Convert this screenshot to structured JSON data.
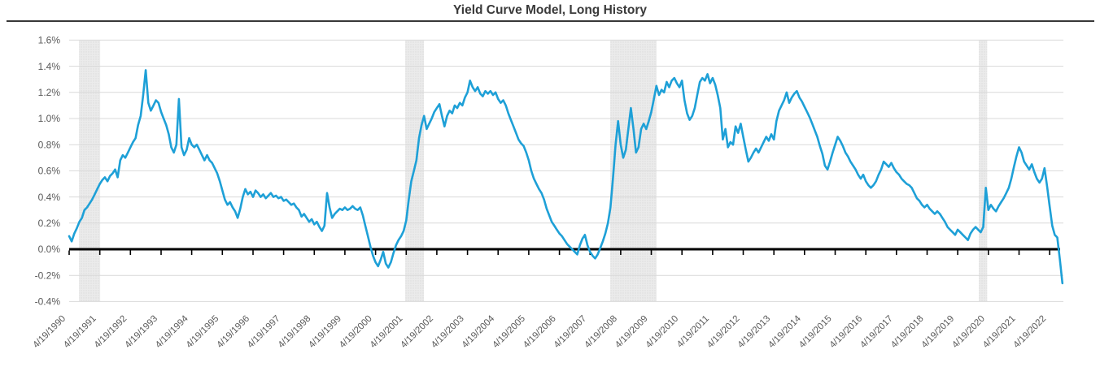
{
  "title": "Yield Curve Model, Long History",
  "colors": {
    "line": "#1EA0D7",
    "grid": "#D9D9D9",
    "band": "#E6E6E6",
    "zero_axis": "#000000",
    "tick_label": "#595959",
    "title_text": "#3A3A3A",
    "title_rule": "#383838",
    "background": "#FFFFFF"
  },
  "chart_data": {
    "type": "line",
    "title": "Yield Curve Model, Long History",
    "xlabel": "",
    "ylabel": "",
    "ylim": [
      -0.4,
      1.6
    ],
    "grid": "horizontal",
    "legend": "none",
    "y_ticks": [
      1.6,
      1.4,
      1.2,
      1.0,
      0.8,
      0.6,
      0.4,
      0.2,
      0.0,
      -0.2,
      -0.4
    ],
    "y_tick_labels": [
      "1.6%",
      "1.4%",
      "1.2%",
      "1.0%",
      "0.8%",
      "0.6%",
      "0.4%",
      "0.2%",
      "0.0%",
      "-0.2%",
      "-0.4%"
    ],
    "x_tick_labels": [
      "4/19/1990",
      "4/19/1991",
      "4/19/1992",
      "4/19/1993",
      "4/19/1994",
      "4/19/1995",
      "4/19/1996",
      "4/19/1997",
      "4/19/1998",
      "4/19/1999",
      "4/19/2000",
      "4/19/2001",
      "4/19/2002",
      "4/19/2003",
      "4/19/2004",
      "4/19/2005",
      "4/19/2006",
      "4/19/2007",
      "4/19/2008",
      "4/19/2009",
      "4/19/2010",
      "4/19/2011",
      "4/19/2012",
      "4/19/2013",
      "4/19/2014",
      "4/19/2015",
      "4/19/2016",
      "4/19/2017",
      "4/19/2018",
      "4/19/2019",
      "4/19/2020",
      "4/19/2021",
      "4/19/2022"
    ],
    "shaded_bands_t": [
      [
        0.32,
        1.01
      ],
      [
        10.97,
        11.58
      ],
      [
        17.66,
        19.17
      ],
      [
        29.69,
        29.96
      ]
    ],
    "shaded_bands_note": "gray vertical recession-style shading; t = years after 4/19/1990",
    "series": [
      {
        "name": "Yield Curve Model",
        "start": "1990-04",
        "frequency": "monthly",
        "unit": "%",
        "values": [
          0.1,
          0.06,
          0.12,
          0.16,
          0.21,
          0.24,
          0.3,
          0.32,
          0.35,
          0.38,
          0.42,
          0.46,
          0.5,
          0.53,
          0.55,
          0.52,
          0.56,
          0.58,
          0.61,
          0.55,
          0.68,
          0.72,
          0.7,
          0.74,
          0.78,
          0.82,
          0.85,
          0.95,
          1.02,
          1.18,
          1.37,
          1.12,
          1.06,
          1.1,
          1.14,
          1.12,
          1.05,
          1.0,
          0.95,
          0.88,
          0.78,
          0.74,
          0.8,
          1.15,
          0.78,
          0.72,
          0.76,
          0.85,
          0.8,
          0.78,
          0.8,
          0.76,
          0.72,
          0.68,
          0.72,
          0.68,
          0.66,
          0.62,
          0.58,
          0.52,
          0.45,
          0.38,
          0.34,
          0.36,
          0.32,
          0.29,
          0.24,
          0.31,
          0.4,
          0.46,
          0.42,
          0.44,
          0.4,
          0.45,
          0.43,
          0.4,
          0.42,
          0.39,
          0.41,
          0.43,
          0.4,
          0.41,
          0.39,
          0.4,
          0.37,
          0.38,
          0.36,
          0.34,
          0.35,
          0.32,
          0.3,
          0.25,
          0.27,
          0.24,
          0.21,
          0.23,
          0.19,
          0.21,
          0.17,
          0.14,
          0.18,
          0.43,
          0.32,
          0.24,
          0.27,
          0.29,
          0.31,
          0.3,
          0.32,
          0.3,
          0.31,
          0.33,
          0.31,
          0.3,
          0.32,
          0.26,
          0.18,
          0.1,
          0.02,
          -0.05,
          -0.1,
          -0.13,
          -0.08,
          -0.02,
          -0.11,
          -0.14,
          -0.1,
          -0.03,
          0.03,
          0.07,
          0.1,
          0.14,
          0.22,
          0.38,
          0.52,
          0.6,
          0.68,
          0.85,
          0.95,
          1.02,
          0.92,
          0.96,
          1.0,
          1.05,
          1.08,
          1.11,
          1.02,
          0.94,
          1.02,
          1.06,
          1.04,
          1.1,
          1.08,
          1.12,
          1.1,
          1.16,
          1.2,
          1.29,
          1.24,
          1.21,
          1.24,
          1.19,
          1.17,
          1.21,
          1.19,
          1.21,
          1.18,
          1.2,
          1.15,
          1.12,
          1.14,
          1.1,
          1.04,
          0.99,
          0.94,
          0.89,
          0.84,
          0.81,
          0.79,
          0.74,
          0.68,
          0.6,
          0.54,
          0.5,
          0.46,
          0.43,
          0.38,
          0.31,
          0.26,
          0.21,
          0.18,
          0.15,
          0.12,
          0.1,
          0.07,
          0.04,
          0.02,
          0.0,
          -0.02,
          -0.04,
          0.03,
          0.08,
          0.11,
          0.03,
          -0.02,
          -0.05,
          -0.07,
          -0.04,
          0.01,
          0.06,
          0.12,
          0.2,
          0.32,
          0.55,
          0.8,
          0.98,
          0.8,
          0.7,
          0.76,
          0.92,
          1.08,
          0.92,
          0.74,
          0.78,
          0.92,
          0.96,
          0.92,
          0.98,
          1.05,
          1.15,
          1.25,
          1.18,
          1.22,
          1.2,
          1.28,
          1.24,
          1.29,
          1.31,
          1.27,
          1.24,
          1.29,
          1.14,
          1.04,
          0.99,
          1.02,
          1.08,
          1.18,
          1.28,
          1.31,
          1.29,
          1.34,
          1.27,
          1.31,
          1.26,
          1.18,
          1.08,
          0.84,
          0.92,
          0.78,
          0.82,
          0.8,
          0.94,
          0.89,
          0.96,
          0.86,
          0.76,
          0.67,
          0.7,
          0.74,
          0.77,
          0.74,
          0.78,
          0.82,
          0.86,
          0.83,
          0.88,
          0.84,
          0.98,
          1.06,
          1.1,
          1.14,
          1.2,
          1.12,
          1.16,
          1.19,
          1.21,
          1.16,
          1.13,
          1.09,
          1.05,
          1.01,
          0.96,
          0.91,
          0.86,
          0.79,
          0.73,
          0.64,
          0.61,
          0.67,
          0.74,
          0.8,
          0.86,
          0.83,
          0.79,
          0.74,
          0.71,
          0.67,
          0.64,
          0.61,
          0.57,
          0.54,
          0.57,
          0.52,
          0.49,
          0.47,
          0.49,
          0.52,
          0.57,
          0.61,
          0.67,
          0.65,
          0.63,
          0.66,
          0.62,
          0.59,
          0.57,
          0.54,
          0.52,
          0.5,
          0.49,
          0.47,
          0.43,
          0.39,
          0.37,
          0.34,
          0.32,
          0.34,
          0.31,
          0.29,
          0.27,
          0.29,
          0.27,
          0.24,
          0.21,
          0.17,
          0.15,
          0.13,
          0.11,
          0.15,
          0.13,
          0.11,
          0.09,
          0.07,
          0.12,
          0.15,
          0.17,
          0.15,
          0.13,
          0.17,
          0.47,
          0.3,
          0.34,
          0.31,
          0.29,
          0.33,
          0.36,
          0.39,
          0.43,
          0.47,
          0.54,
          0.63,
          0.71,
          0.78,
          0.74,
          0.67,
          0.64,
          0.61,
          0.65,
          0.59,
          0.54,
          0.51,
          0.54,
          0.62,
          0.48,
          0.33,
          0.18,
          0.11,
          0.09,
          -0.08,
          -0.26
        ]
      }
    ]
  }
}
